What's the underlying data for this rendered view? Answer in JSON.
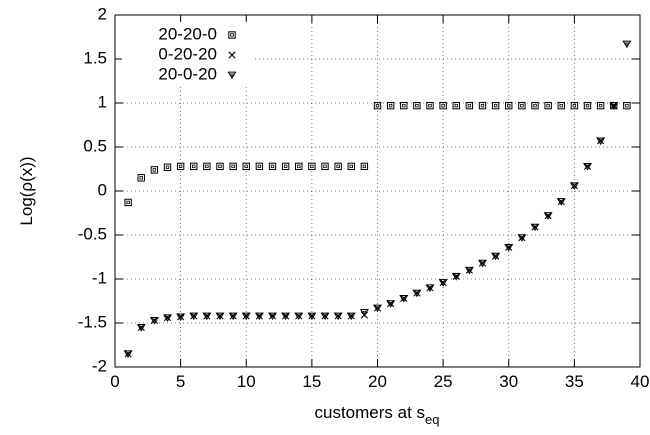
{
  "chart_data": {
    "type": "scatter",
    "xlabel": "customers at s",
    "xlabel_subscript": "eq",
    "ylabel": "Log(ρ(x))",
    "xlim": [
      0,
      40
    ],
    "ylim": [
      -2,
      2
    ],
    "x_ticks": [
      0,
      5,
      10,
      15,
      20,
      25,
      30,
      35,
      40
    ],
    "y_ticks": [
      -2,
      -1.5,
      -1,
      -0.5,
      0,
      0.5,
      1,
      1.5,
      2
    ],
    "x_tick_labels": [
      "0",
      "5",
      "10",
      "15",
      "20",
      "25",
      "30",
      "35",
      "40"
    ],
    "y_tick_labels": [
      "-2",
      "-1.5",
      "-1",
      "-0.5",
      "0",
      "0.5",
      "1",
      "1.5",
      "2"
    ],
    "grid": true,
    "legend_position": "top-left",
    "series": [
      {
        "name": "20-20-0",
        "marker": "square",
        "x": [
          1,
          2,
          3,
          4,
          5,
          6,
          7,
          8,
          9,
          10,
          11,
          12,
          13,
          14,
          15,
          16,
          17,
          18,
          19,
          20,
          21,
          22,
          23,
          24,
          25,
          26,
          27,
          28,
          29,
          30,
          31,
          32,
          33,
          34,
          35,
          36,
          37,
          38,
          39
        ],
        "values": [
          -0.13,
          0.15,
          0.24,
          0.27,
          0.28,
          0.28,
          0.28,
          0.28,
          0.28,
          0.28,
          0.28,
          0.28,
          0.28,
          0.28,
          0.28,
          0.28,
          0.28,
          0.28,
          0.28,
          0.97,
          0.97,
          0.97,
          0.97,
          0.97,
          0.97,
          0.97,
          0.97,
          0.97,
          0.97,
          0.97,
          0.97,
          0.97,
          0.97,
          0.97,
          0.97,
          0.97,
          0.97,
          0.97,
          0.97
        ]
      },
      {
        "name": "0-20-20",
        "marker": "cross",
        "x": [
          1,
          2,
          3,
          4,
          5,
          6,
          7,
          8,
          9,
          10,
          11,
          12,
          13,
          14,
          15,
          16,
          17,
          18,
          19,
          20,
          21,
          22,
          23,
          24,
          25,
          26,
          27,
          28,
          29,
          30,
          31,
          32,
          33,
          34,
          35,
          36,
          37,
          38
        ],
        "values": [
          -1.85,
          -1.55,
          -1.47,
          -1.44,
          -1.43,
          -1.42,
          -1.42,
          -1.42,
          -1.42,
          -1.42,
          -1.42,
          -1.42,
          -1.42,
          -1.42,
          -1.42,
          -1.42,
          -1.42,
          -1.42,
          -1.41,
          -1.33,
          -1.28,
          -1.22,
          -1.16,
          -1.1,
          -1.04,
          -0.97,
          -0.9,
          -0.82,
          -0.74,
          -0.64,
          -0.53,
          -0.41,
          -0.28,
          -0.12,
          0.06,
          0.28,
          0.57,
          0.97
        ]
      },
      {
        "name": "20-0-20",
        "marker": "triangle-down",
        "x": [
          1,
          2,
          3,
          4,
          5,
          6,
          7,
          8,
          9,
          10,
          11,
          12,
          13,
          14,
          15,
          16,
          17,
          18,
          19,
          20,
          21,
          22,
          23,
          24,
          25,
          26,
          27,
          28,
          29,
          30,
          31,
          32,
          33,
          34,
          35,
          36,
          37,
          38,
          39
        ],
        "values": [
          -1.85,
          -1.55,
          -1.47,
          -1.44,
          -1.43,
          -1.42,
          -1.42,
          -1.42,
          -1.42,
          -1.42,
          -1.42,
          -1.42,
          -1.42,
          -1.42,
          -1.42,
          -1.42,
          -1.42,
          -1.42,
          -1.38,
          -1.33,
          -1.28,
          -1.22,
          -1.16,
          -1.1,
          -1.04,
          -0.97,
          -0.9,
          -0.82,
          -0.74,
          -0.64,
          -0.53,
          -0.41,
          -0.28,
          -0.12,
          0.06,
          0.28,
          0.57,
          0.97,
          1.67
        ]
      }
    ]
  }
}
